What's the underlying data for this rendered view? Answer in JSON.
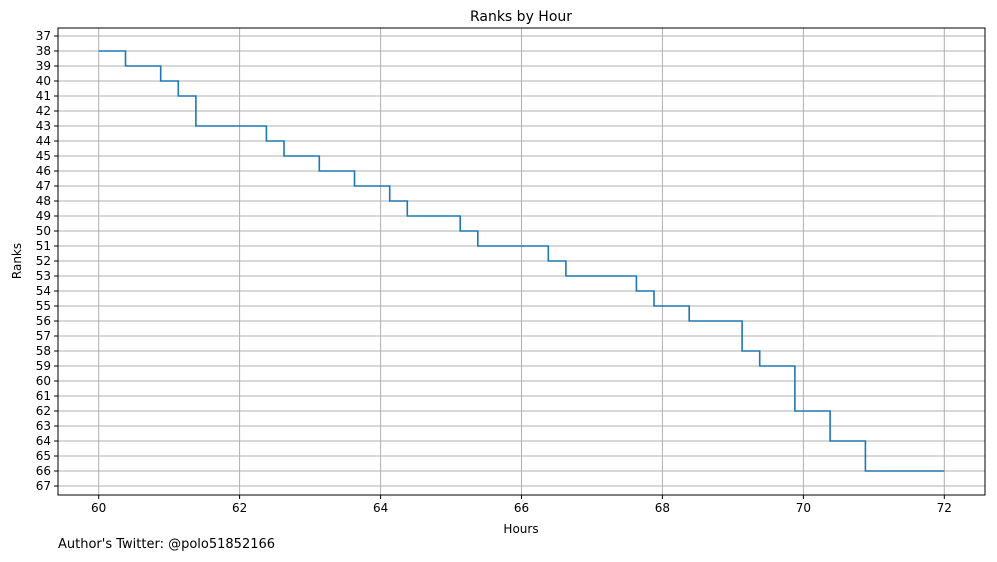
{
  "chart_data": {
    "type": "line",
    "style": "step",
    "title": "Ranks by Hour",
    "xlabel": "Hours",
    "ylabel": "Ranks",
    "xlim": [
      59.4,
      72.6
    ],
    "ylim": [
      37,
      67
    ],
    "y_inverted": true,
    "grid": true,
    "x_ticks": [
      60,
      62,
      64,
      66,
      68,
      70,
      72
    ],
    "y_ticks": [
      37,
      38,
      39,
      40,
      41,
      42,
      43,
      44,
      45,
      46,
      47,
      48,
      49,
      50,
      51,
      52,
      53,
      54,
      55,
      56,
      57,
      58,
      59,
      60,
      61,
      62,
      63,
      64,
      65,
      66,
      67
    ],
    "series": [
      {
        "color": "#1f77b4",
        "x": [
          60.0,
          60.38,
          60.88,
          61.13,
          61.38,
          62.38,
          62.63,
          63.13,
          63.63,
          64.13,
          64.38,
          65.13,
          65.38,
          66.38,
          66.63,
          67.63,
          67.88,
          68.38,
          69.13,
          69.38,
          69.88,
          70.38,
          70.88,
          72.0
        ],
        "y": [
          38,
          39,
          40,
          41,
          43,
          44,
          45,
          46,
          47,
          48,
          49,
          50,
          51,
          52,
          53,
          54,
          55,
          56,
          58,
          59,
          62,
          64,
          66,
          66
        ]
      }
    ]
  },
  "footer": {
    "note": "Author's Twitter: @polo51852166"
  }
}
